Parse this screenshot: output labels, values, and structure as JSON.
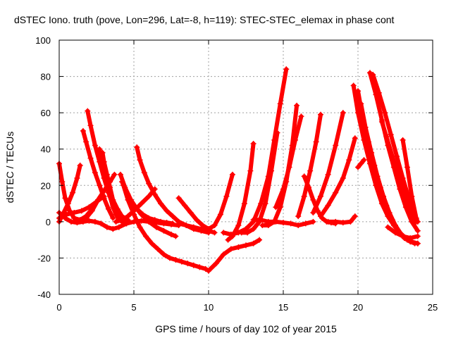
{
  "chart_data": {
    "type": "scatter",
    "title": "dSTEC Iono. truth (pove, Lon=296, Lat=-8, h=119): STEC-STEC_elemax in phase cont",
    "xlabel": "GPS time / hours of day 102 of year 2015",
    "ylabel": "dSTEC  / TECUs",
    "xlim": [
      0,
      25
    ],
    "ylim": [
      -40,
      100
    ],
    "xticks": [
      0,
      5,
      10,
      15,
      20,
      25
    ],
    "yticks": [
      -40,
      -20,
      0,
      20,
      40,
      60,
      80,
      100
    ],
    "grid": true,
    "marker": "+",
    "color": "#ff0000",
    "series": [
      {
        "x": [
          0.0,
          0.3,
          0.6,
          0.9,
          1.2,
          1.4
        ],
        "y": [
          0,
          5,
          10,
          16,
          24,
          31
        ]
      },
      {
        "x": [
          0.0,
          0.2,
          0.4,
          0.7,
          1.0,
          1.4,
          1.8,
          2.2,
          2.6,
          3.0
        ],
        "y": [
          32,
          22,
          13,
          6,
          2,
          1,
          3,
          7,
          12,
          17
        ]
      },
      {
        "x": [
          0.0,
          0.4,
          0.8,
          1.2,
          1.6,
          2.0,
          2.4,
          2.8,
          3.2,
          3.6
        ],
        "y": [
          5,
          2,
          0,
          -0.5,
          0,
          0.5,
          0,
          -1,
          -3,
          -4
        ]
      },
      {
        "x": [
          3.6,
          4.0,
          4.5,
          5.0,
          5.5,
          6.0,
          6.5,
          7.0,
          7.5,
          8.0
        ],
        "y": [
          -4,
          -3,
          -1,
          0,
          0.5,
          0,
          -0.5,
          -1,
          -1.5,
          -2
        ]
      },
      {
        "x": [
          0.0,
          0.5,
          1.0,
          1.5,
          2.0,
          2.5,
          3.0
        ],
        "y": [
          2,
          4,
          5,
          6,
          8,
          11,
          14
        ]
      },
      {
        "x": [
          1.6,
          1.8,
          2.1,
          2.4,
          2.7,
          3.0,
          3.3,
          3.6
        ],
        "y": [
          50,
          44,
          35,
          27,
          20,
          13,
          7,
          2
        ]
      },
      {
        "x": [
          1.9,
          2.1,
          2.4,
          2.7,
          3.0,
          3.3,
          3.6,
          3.9,
          4.2,
          4.5
        ],
        "y": [
          61,
          53,
          42,
          33,
          24,
          16,
          9,
          4,
          1,
          -1
        ]
      },
      {
        "x": [
          2.7,
          2.8,
          3.0,
          3.2,
          3.4,
          3.6,
          3.8,
          4.0,
          4.2,
          4.5
        ],
        "y": [
          40,
          35,
          28,
          21,
          14,
          8,
          4,
          1,
          0,
          -1
        ]
      },
      {
        "x": [
          2.9,
          3.0,
          3.2,
          3.4,
          3.6,
          3.9,
          4.2,
          4.6
        ],
        "y": [
          38,
          33,
          26,
          19,
          12,
          7,
          3,
          1
        ]
      },
      {
        "x": [
          1.8,
          2.2,
          2.6,
          3.0,
          3.4,
          3.7
        ],
        "y": [
          2,
          6,
          12,
          17,
          22,
          26
        ]
      },
      {
        "x": [
          4.1,
          4.4,
          4.8,
          5.2,
          5.6,
          6.0,
          6.4,
          6.8,
          7.2,
          7.6
        ],
        "y": [
          26,
          19,
          12,
          7,
          4,
          2,
          1,
          0,
          -0.5,
          -1
        ]
      },
      {
        "x": [
          4.2,
          4.6,
          5.0,
          5.5,
          6.0,
          6.5,
          7.0,
          7.5,
          7.8
        ],
        "y": [
          22,
          15,
          9,
          4,
          0,
          -3,
          -5,
          -7,
          -8
        ]
      },
      {
        "x": [
          4.3,
          4.6,
          5.0,
          5.4,
          5.8,
          6.2,
          6.6,
          7.0,
          7.4,
          7.8,
          8.2,
          8.6,
          9.0,
          9.4,
          9.8,
          10.0
        ],
        "y": [
          20,
          12,
          4,
          -3,
          -8,
          -12,
          -15,
          -18,
          -20,
          -21,
          -22,
          -23,
          -24,
          -25,
          -26,
          -27
        ]
      },
      {
        "x": [
          3.8,
          4.2,
          4.6,
          5.0,
          5.5,
          6.0,
          6.4
        ],
        "y": [
          0,
          1,
          3,
          6,
          10,
          14,
          18
        ]
      },
      {
        "x": [
          5.2,
          5.4,
          5.7,
          6.0,
          6.4,
          6.8,
          7.2,
          7.6,
          8.0,
          8.5,
          9.0,
          9.5,
          10.0
        ],
        "y": [
          41,
          34,
          27,
          21,
          15,
          10,
          6,
          3,
          0,
          -2,
          -4,
          -5,
          -6
        ]
      },
      {
        "x": [
          8.0,
          8.4,
          8.8,
          9.2,
          9.6,
          10.0,
          10.4,
          10.8,
          11.2,
          11.6
        ],
        "y": [
          13,
          9,
          5,
          1,
          -2,
          -4,
          -2,
          4,
          14,
          26
        ]
      },
      {
        "x": [
          8.0,
          8.5,
          9.0,
          9.5,
          10.0,
          10.4
        ],
        "y": [
          -1,
          -2,
          -3,
          -4,
          -5,
          -6
        ]
      },
      {
        "x": [
          10.0,
          10.5,
          11.0,
          11.5,
          12.0,
          12.5,
          13.0,
          13.4
        ],
        "y": [
          -27,
          -23,
          -18,
          -15,
          -14,
          -13,
          -12,
          -10
        ]
      },
      {
        "x": [
          11.0,
          11.5,
          12.0,
          12.5,
          13.0,
          13.5,
          14.0,
          14.4,
          14.8,
          15.2
        ],
        "y": [
          -6,
          -7,
          -6,
          -4,
          0,
          10,
          25,
          45,
          65,
          84
        ]
      },
      {
        "x": [
          11.3,
          11.6,
          12.0,
          12.4,
          12.8,
          13.0
        ],
        "y": [
          -10,
          -8,
          -2,
          10,
          28,
          43
        ]
      },
      {
        "x": [
          12.2,
          12.6,
          13.0,
          13.4,
          13.8,
          14.2,
          14.6
        ],
        "y": [
          -6,
          -6,
          -4,
          0,
          10,
          28,
          49
        ]
      },
      {
        "x": [
          13.6,
          14.0,
          14.4,
          14.8,
          15.2,
          15.6,
          15.9
        ],
        "y": [
          -2,
          -2,
          0,
          8,
          22,
          42,
          64
        ]
      },
      {
        "x": [
          13.0,
          13.5,
          14.0,
          14.5,
          15.0,
          15.5,
          16.0,
          16.5,
          17.0
        ],
        "y": [
          1,
          1,
          0,
          0,
          -0.5,
          -1,
          -2,
          -1,
          0
        ]
      },
      {
        "x": [
          14.5,
          15.0,
          15.4,
          15.8,
          16.2
        ],
        "y": [
          8,
          18,
          30,
          45,
          58
        ]
      },
      {
        "x": [
          16.4,
          16.7,
          17.0,
          17.3,
          17.6,
          17.9,
          18.2,
          18.5
        ],
        "y": [
          25,
          19,
          12,
          6,
          2,
          0,
          -0.5,
          -1
        ]
      },
      {
        "x": [
          16.0,
          16.4,
          16.8,
          17.2,
          17.5
        ],
        "y": [
          3,
          14,
          28,
          44,
          59
        ]
      },
      {
        "x": [
          17.0,
          17.5,
          18.0,
          18.5,
          19.0
        ],
        "y": [
          5,
          14,
          26,
          42,
          60
        ]
      },
      {
        "x": [
          17.5,
          18.0,
          18.5,
          19.0,
          19.4,
          19.8
        ],
        "y": [
          3,
          9,
          16,
          24,
          34,
          46
        ]
      },
      {
        "x": [
          18.0,
          18.5,
          19.0,
          19.5,
          19.8
        ],
        "y": [
          0,
          0,
          -0.5,
          0,
          3
        ]
      },
      {
        "x": [
          19.7,
          20.0,
          20.4,
          20.8,
          21.2,
          21.6,
          22.0,
          22.4,
          22.8,
          23.2,
          23.6,
          24.0
        ],
        "y": [
          75,
          60,
          45,
          32,
          20,
          10,
          3,
          -2,
          -6,
          -9,
          -11,
          -12
        ]
      },
      {
        "x": [
          20.0,
          20.3,
          20.7,
          21.1,
          21.5,
          21.9,
          22.3,
          22.7,
          23.1,
          23.5,
          24.0
        ],
        "y": [
          72,
          58,
          44,
          31,
          19,
          9,
          1,
          -5,
          -9,
          -11,
          -12
        ]
      },
      {
        "x": [
          20.2,
          20.5,
          20.9,
          21.3,
          21.7,
          22.1,
          22.5,
          22.9,
          23.3,
          23.8
        ],
        "y": [
          65,
          52,
          38,
          25,
          14,
          5,
          -2,
          -7,
          -10,
          -12
        ]
      },
      {
        "x": [
          20.8,
          21.2,
          21.6,
          22.0,
          22.4,
          22.8,
          23.2,
          23.6,
          24.0
        ],
        "y": [
          82,
          70,
          56,
          42,
          30,
          18,
          8,
          0,
          -5
        ]
      },
      {
        "x": [
          21.0,
          21.4,
          21.8,
          22.2,
          22.6,
          23.0,
          23.4,
          23.8,
          24.0
        ],
        "y": [
          81,
          71,
          60,
          48,
          36,
          24,
          13,
          4,
          0
        ]
      },
      {
        "x": [
          21.6,
          21.9,
          22.3,
          22.7,
          23.1,
          23.5,
          23.9
        ],
        "y": [
          55,
          47,
          36,
          26,
          16,
          7,
          0
        ]
      },
      {
        "x": [
          20.0,
          20.2,
          20.4
        ],
        "y": [
          30,
          32,
          34
        ]
      },
      {
        "x": [
          23.0,
          23.3,
          23.6,
          23.9
        ],
        "y": [
          45,
          30,
          14,
          2
        ]
      },
      {
        "x": [
          22.0,
          22.5,
          23.0,
          23.5,
          24.0
        ],
        "y": [
          -3,
          -6,
          -8,
          -9,
          -8
        ]
      }
    ]
  }
}
